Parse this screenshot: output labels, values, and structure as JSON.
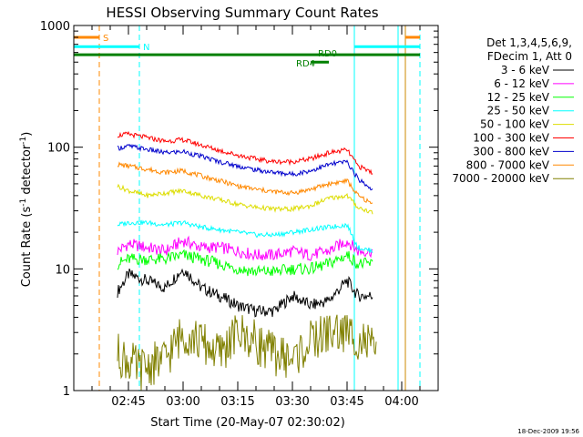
{
  "chart_data": {
    "type": "line",
    "title": "HESSI Observing Summary Count Rates",
    "xlabel": "Start Time (20-May-07 02:30:02)",
    "ylabel_prefix": "Count Rate (s",
    "ylabel_sup": "-1",
    "ylabel_mid": " detector",
    "ylabel_suffix": ")",
    "footer_date": "18-Dec-2009 19:56",
    "x_start_minutes": 0,
    "x_end_minutes": 100,
    "x_minutes_offset_note": "",
    "xlim_time": [
      "02:30:02",
      "04:10:00"
    ],
    "ylim": [
      1,
      1000
    ],
    "yscale": "log",
    "y_ticks": [
      {
        "value": 1,
        "label": "1"
      },
      {
        "value": 10,
        "label": "10"
      },
      {
        "value": 100,
        "label": "100"
      },
      {
        "value": 1000,
        "label": "1000"
      }
    ],
    "x_ticks": [
      {
        "time": "02:45",
        "label": "02:45"
      },
      {
        "time": "03:00",
        "label": "03:00"
      },
      {
        "time": "03:15",
        "label": "03:15"
      },
      {
        "time": "03:30",
        "label": "03:30"
      },
      {
        "time": "03:45",
        "label": "03:45"
      },
      {
        "time": "04:00",
        "label": "04:00"
      }
    ],
    "legend": {
      "placement": "top-right-outside",
      "header": [
        "Det 1,3,4,5,6,9,",
        "FDecim 1, Att 0"
      ]
    },
    "series": [
      {
        "name": "3 - 6 keV",
        "color": "#000000",
        "times": [
          "02:42",
          "02:45",
          "02:50",
          "02:55",
          "03:00",
          "03:05",
          "03:10",
          "03:15",
          "03:20",
          "03:25",
          "03:30",
          "03:35",
          "03:40",
          "03:45",
          "03:48",
          "03:52"
        ],
        "values": [
          6.5,
          9,
          8,
          7,
          10,
          7,
          6,
          5,
          4.5,
          4.5,
          6,
          5,
          5.5,
          8,
          6,
          6
        ]
      },
      {
        "name": "6 - 12 keV",
        "color": "#ff00ff",
        "times": [
          "02:42",
          "02:45",
          "02:50",
          "02:55",
          "03:00",
          "03:05",
          "03:10",
          "03:15",
          "03:20",
          "03:25",
          "03:30",
          "03:35",
          "03:40",
          "03:45",
          "03:48",
          "03:52"
        ],
        "values": [
          14,
          16,
          15,
          14,
          17,
          15,
          15,
          14,
          13,
          13,
          14,
          13,
          14,
          17,
          14,
          14
        ]
      },
      {
        "name": "12 - 25 keV",
        "color": "#00ff00",
        "times": [
          "02:42",
          "02:45",
          "02:50",
          "02:55",
          "03:00",
          "03:05",
          "03:10",
          "03:15",
          "03:20",
          "03:25",
          "03:30",
          "03:35",
          "03:40",
          "03:45",
          "03:48",
          "03:52"
        ],
        "values": [
          11,
          12,
          12,
          12,
          13,
          12,
          11,
          10,
          9.5,
          9.5,
          10,
          10,
          11,
          13,
          11,
          11
        ]
      },
      {
        "name": "25 - 50 keV",
        "color": "#00ffff",
        "times": [
          "02:42",
          "02:45",
          "02:50",
          "02:55",
          "03:00",
          "03:05",
          "03:10",
          "03:15",
          "03:20",
          "03:25",
          "03:30",
          "03:35",
          "03:40",
          "03:45",
          "03:48",
          "03:52"
        ],
        "values": [
          23,
          24,
          24,
          23,
          24,
          22,
          21,
          20,
          19,
          19,
          20,
          21,
          22,
          23,
          15,
          14
        ]
      },
      {
        "name": "50 - 100 keV",
        "color": "#dddd00",
        "times": [
          "02:42",
          "02:45",
          "02:50",
          "02:55",
          "03:00",
          "03:05",
          "03:10",
          "03:15",
          "03:20",
          "03:25",
          "03:30",
          "03:35",
          "03:40",
          "03:45",
          "03:48",
          "03:52"
        ],
        "values": [
          48,
          44,
          40,
          42,
          44,
          40,
          37,
          34,
          32,
          31,
          31,
          33,
          38,
          40,
          32,
          29
        ]
      },
      {
        "name": "100 - 300 keV",
        "color": "#ff0000",
        "times": [
          "02:42",
          "02:45",
          "02:50",
          "02:55",
          "03:00",
          "03:05",
          "03:10",
          "03:15",
          "03:20",
          "03:25",
          "03:30",
          "03:35",
          "03:40",
          "03:45",
          "03:48",
          "03:52"
        ],
        "values": [
          125,
          128,
          120,
          112,
          115,
          104,
          94,
          86,
          80,
          76,
          76,
          80,
          90,
          95,
          70,
          62
        ]
      },
      {
        "name": "300 - 800 keV",
        "color": "#0000cc",
        "times": [
          "02:42",
          "02:45",
          "02:50",
          "02:55",
          "03:00",
          "03:05",
          "03:10",
          "03:15",
          "03:20",
          "03:25",
          "03:30",
          "03:35",
          "03:40",
          "03:45",
          "03:48",
          "03:52"
        ],
        "values": [
          98,
          102,
          96,
          90,
          92,
          84,
          76,
          70,
          65,
          62,
          60,
          64,
          72,
          76,
          55,
          45
        ]
      },
      {
        "name": "800 - 7000 keV",
        "color": "#ff8800",
        "times": [
          "02:42",
          "02:45",
          "02:50",
          "02:55",
          "03:00",
          "03:05",
          "03:10",
          "03:15",
          "03:20",
          "03:25",
          "03:30",
          "03:35",
          "03:40",
          "03:45",
          "03:48",
          "03:52"
        ],
        "values": [
          72,
          70,
          66,
          62,
          64,
          58,
          53,
          48,
          45,
          43,
          42,
          45,
          50,
          53,
          40,
          34
        ]
      },
      {
        "name": "7000 - 20000 keV",
        "color": "#808000",
        "times": [
          "02:42",
          "02:48",
          "02:55",
          "03:00",
          "03:05",
          "03:10",
          "03:15",
          "03:20",
          "03:25",
          "03:30",
          "03:35",
          "03:40",
          "03:45",
          "03:50",
          "03:53"
        ],
        "values": [
          2,
          1.5,
          1.8,
          3,
          2.5,
          2,
          3,
          2.5,
          2,
          1.8,
          2.5,
          3,
          3,
          2.5,
          2
        ]
      }
    ],
    "flags": [
      {
        "label": "S",
        "color": "#ff8800",
        "y": 800,
        "segments": [
          [
            "02:30",
            "02:37"
          ],
          [
            "04:01",
            "04:05"
          ]
        ]
      },
      {
        "label": "N",
        "color": "#00ffff",
        "y": 670,
        "segments": [
          [
            "02:30",
            "02:48"
          ],
          [
            "03:47",
            "04:05"
          ]
        ]
      },
      {
        "label": "RD0",
        "color": "#008000",
        "y": 575,
        "segments": [
          [
            "02:30",
            "04:05"
          ]
        ]
      },
      {
        "label": "RD4",
        "color": "#008000",
        "y": 500,
        "segments": [
          [
            "03:35",
            "03:40"
          ]
        ]
      }
    ],
    "vertical_markers": [
      {
        "time": "02:37",
        "color": "#ff8800",
        "dash": true
      },
      {
        "time": "02:48",
        "color": "#00ffff",
        "dash": true
      },
      {
        "time": "03:47",
        "color": "#00ffff",
        "dash": false
      },
      {
        "time": "03:59",
        "color": "#00ffff",
        "dash": false
      },
      {
        "time": "04:01",
        "color": "#cc8800",
        "dash": false
      },
      {
        "time": "04:05",
        "color": "#00ffff",
        "dash": true
      }
    ]
  }
}
